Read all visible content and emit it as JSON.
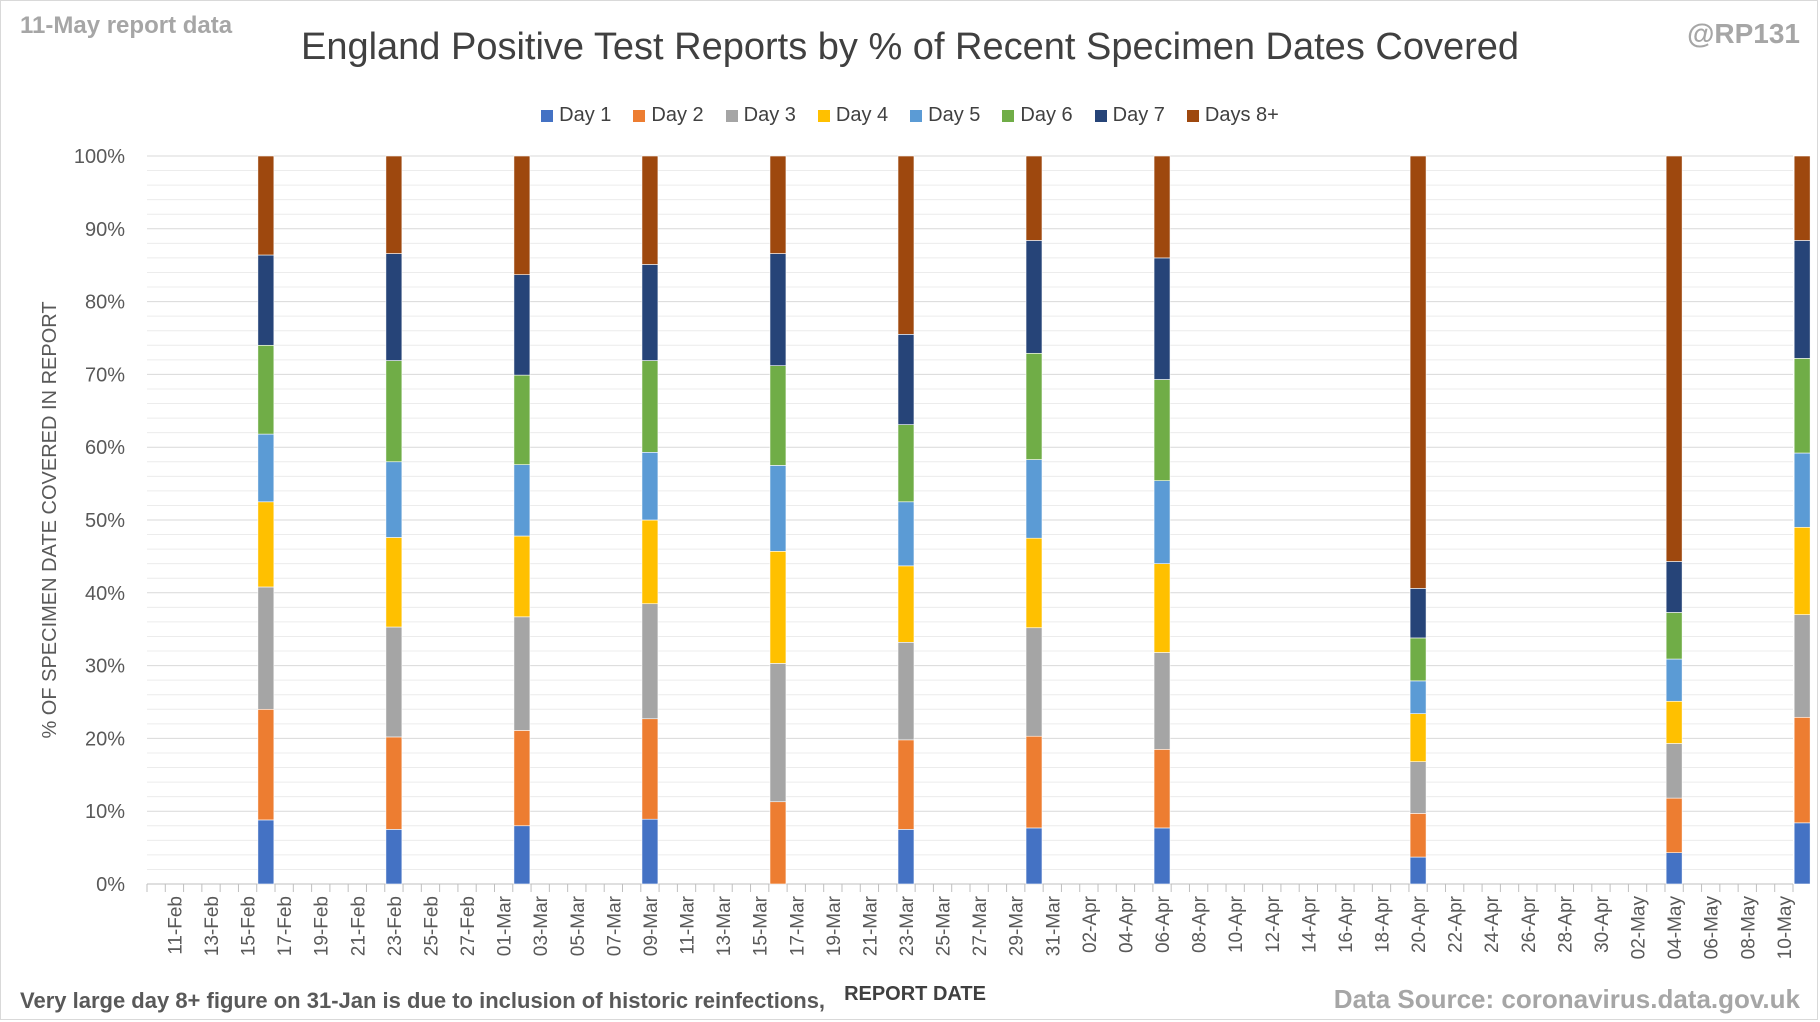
{
  "header": {
    "report_note": "11-May report data",
    "handle": "@RP131"
  },
  "footer": {
    "note": "Very large day 8+ figure on 31-Jan is due to inclusion of historic reinfections,",
    "source": "Data Source: coronavirus.data.gov.uk"
  },
  "chart_data": {
    "type": "bar",
    "stacked": true,
    "title": "England Positive Test Reports by % of Recent Specimen Dates Covered",
    "xlabel": "REPORT DATE",
    "ylabel": "% OF SPECIMEN DATE COVERED IN REPORT",
    "ylim": [
      0,
      100
    ],
    "y_ticks": [
      "0%",
      "10%",
      "20%",
      "30%",
      "40%",
      "50%",
      "60%",
      "70%",
      "80%",
      "90%",
      "100%"
    ],
    "grid": true,
    "legend_position": "top",
    "x_tick_labels": [
      "11-Feb",
      "13-Feb",
      "15-Feb",
      "17-Feb",
      "19-Feb",
      "21-Feb",
      "23-Feb",
      "25-Feb",
      "27-Feb",
      "01-Mar",
      "03-Mar",
      "05-Mar",
      "07-Mar",
      "09-Mar",
      "11-Mar",
      "13-Mar",
      "15-Mar",
      "17-Mar",
      "19-Mar",
      "21-Mar",
      "23-Mar",
      "25-Mar",
      "27-Mar",
      "29-Mar",
      "31-Mar",
      "02-Apr",
      "04-Apr",
      "06-Apr",
      "08-Apr",
      "10-Apr",
      "12-Apr",
      "14-Apr",
      "16-Apr",
      "18-Apr",
      "20-Apr",
      "22-Apr",
      "24-Apr",
      "26-Apr",
      "28-Apr",
      "30-Apr",
      "02-May",
      "04-May",
      "06-May",
      "08-May",
      "10-May"
    ],
    "categories": [
      "16-Feb",
      "23-Feb",
      "02-Mar",
      "09-Mar",
      "16-Mar",
      "23-Mar",
      "30-Mar",
      "06-Apr",
      "20-Apr",
      "04-May",
      "11-May"
    ],
    "series": [
      {
        "name": "Day 1",
        "color": "#4472c4",
        "values": [
          8.8,
          7.5,
          8.0,
          8.9,
          0.0,
          7.5,
          7.7,
          7.7,
          3.7,
          4.3,
          8.4
        ]
      },
      {
        "name": "Day 2",
        "color": "#ed7d31",
        "values": [
          15.2,
          12.7,
          13.1,
          13.8,
          11.3,
          12.3,
          12.6,
          10.8,
          6.0,
          7.5,
          14.5
        ]
      },
      {
        "name": "Day 3",
        "color": "#a5a5a5",
        "values": [
          16.8,
          15.1,
          15.6,
          15.8,
          19.0,
          13.4,
          14.9,
          13.3,
          7.1,
          7.5,
          14.1
        ]
      },
      {
        "name": "Day 4",
        "color": "#ffc000",
        "values": [
          11.7,
          12.3,
          11.1,
          11.5,
          15.4,
          10.5,
          12.3,
          12.2,
          6.6,
          5.8,
          12.0
        ]
      },
      {
        "name": "Day 5",
        "color": "#5b9bd5",
        "values": [
          9.3,
          10.4,
          9.8,
          9.3,
          11.8,
          8.8,
          10.8,
          11.4,
          4.5,
          5.8,
          10.2
        ]
      },
      {
        "name": "Day 6",
        "color": "#70ad47",
        "values": [
          12.2,
          13.9,
          12.3,
          12.6,
          13.7,
          10.6,
          14.6,
          13.9,
          5.9,
          6.4,
          13.0
        ]
      },
      {
        "name": "Day 7",
        "color": "#264478",
        "values": [
          12.4,
          14.7,
          13.8,
          13.2,
          15.4,
          12.4,
          15.5,
          16.7,
          6.8,
          7.0,
          16.2
        ]
      },
      {
        "name": "Days 8+",
        "color": "#9e480e",
        "values": [
          13.6,
          13.4,
          16.3,
          14.9,
          13.4,
          24.5,
          11.6,
          14.0,
          59.4,
          55.7,
          11.6
        ]
      }
    ]
  }
}
